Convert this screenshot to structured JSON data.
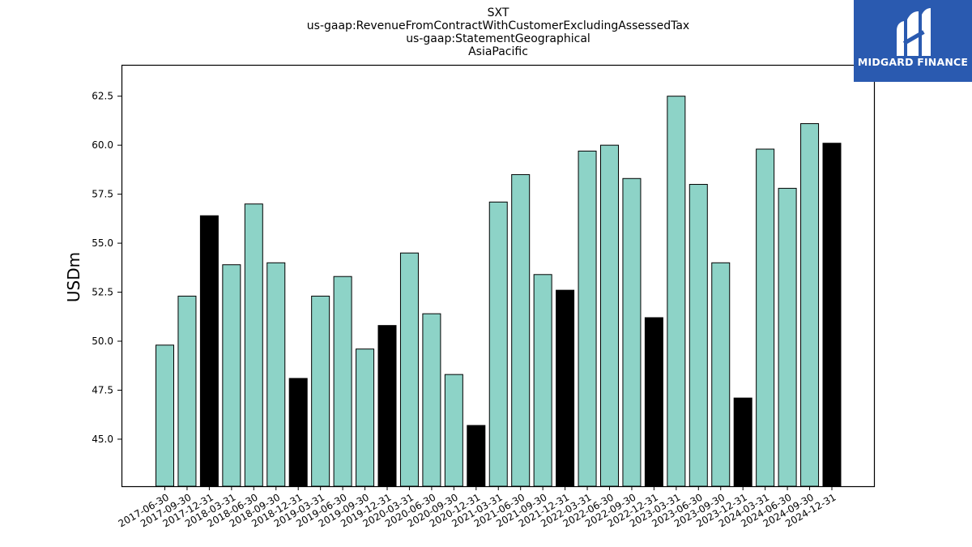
{
  "chart_data": {
    "type": "bar",
    "title_lines": [
      "SXT",
      "us-gaap:RevenueFromContractWithCustomerExcludingAssessedTax",
      "us-gaap:StatementGeographical",
      "AsiaPacific"
    ],
    "xlabel": "",
    "ylabel": "USDm",
    "ylim": [
      42.6,
      64.1
    ],
    "yticks": [
      "45.0",
      "47.5",
      "50.0",
      "52.5",
      "55.0",
      "57.5",
      "60.0",
      "62.5"
    ],
    "grid": false,
    "categories": [
      "2017-06-30",
      "2017-09-30",
      "2017-12-31",
      "2018-03-31",
      "2018-06-30",
      "2018-09-30",
      "2018-12-31",
      "2019-03-31",
      "2019-06-30",
      "2019-09-30",
      "2019-12-31",
      "2020-03-31",
      "2020-06-30",
      "2020-09-30",
      "2020-12-31",
      "2021-03-31",
      "2021-06-30",
      "2021-09-30",
      "2021-12-31",
      "2022-03-31",
      "2022-06-30",
      "2022-09-30",
      "2022-12-31",
      "2023-03-31",
      "2023-06-30",
      "2023-09-30",
      "2023-12-31",
      "2024-03-31",
      "2024-06-30",
      "2024-09-30",
      "2024-12-31"
    ],
    "values": [
      49.8,
      52.3,
      56.4,
      53.9,
      57.0,
      54.0,
      48.1,
      52.3,
      53.3,
      49.6,
      50.8,
      54.5,
      51.4,
      48.3,
      45.7,
      57.1,
      58.5,
      53.4,
      52.6,
      59.7,
      60.0,
      58.3,
      51.2,
      62.5,
      58.0,
      54.0,
      47.1,
      59.8,
      57.8,
      61.1,
      60.1
    ],
    "highlight": [
      false,
      false,
      true,
      false,
      false,
      false,
      true,
      false,
      false,
      false,
      true,
      false,
      false,
      false,
      true,
      false,
      false,
      false,
      true,
      false,
      false,
      false,
      true,
      false,
      false,
      false,
      true,
      false,
      false,
      false,
      true
    ],
    "colors": {
      "bar": "#8dd3c7",
      "highlight": "#000000",
      "edge": "#000000"
    }
  },
  "logo": {
    "text": "MIDGARD FINANCE",
    "background": "#2a5ab0"
  }
}
